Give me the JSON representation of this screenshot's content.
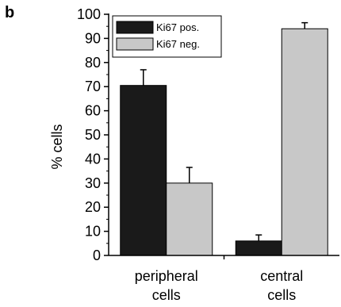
{
  "panel_label": "b",
  "chart_data": {
    "type": "bar",
    "categories": [
      "peripheral\ncells",
      "central\ncells"
    ],
    "category_lines": [
      [
        "peripheral",
        "cells"
      ],
      [
        "central",
        "cells"
      ]
    ],
    "series": [
      {
        "name": "Ki67 pos.",
        "values": [
          70.5,
          6
        ],
        "errors": [
          6.5,
          2.5
        ],
        "color": "#1a1a1a"
      },
      {
        "name": "Ki67 neg.",
        "values": [
          30,
          94
        ],
        "errors": [
          6.5,
          2.5
        ],
        "color": "#c8c8c8"
      }
    ],
    "ylabel": "% cells",
    "xlabel": "",
    "ylim": [
      0,
      100
    ],
    "yticks": [
      "0",
      "10",
      "20",
      "30",
      "40",
      "50",
      "60",
      "70",
      "80",
      "90",
      "100"
    ],
    "grid": false,
    "legend_position": "top-left"
  }
}
